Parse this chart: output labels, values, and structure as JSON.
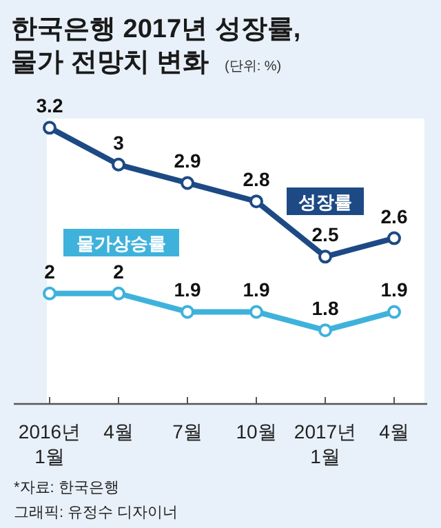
{
  "chart_data": {
    "type": "line",
    "title": "한국은행 2017년 성장률,\n물가 전망치 변화",
    "subtitle": "(단위: %)",
    "categories": [
      "2016년\n1월",
      "4월",
      "7월",
      "10월",
      "2017년\n1월",
      "4월"
    ],
    "series": [
      {
        "name": "성장률",
        "color": "#1d4a85",
        "values": [
          3.2,
          3,
          2.9,
          2.8,
          2.5,
          2.6
        ]
      },
      {
        "name": "물가상승률",
        "color": "#3fb2dc",
        "axis": "y2",
        "values": [
          2,
          2,
          1.9,
          1.9,
          1.8,
          1.9
        ]
      }
    ],
    "ylim": [
      1.7,
      3.25
    ],
    "y2lim": [
      1.4,
      2.95
    ],
    "data_labels": true,
    "marker": "circle",
    "line_style": "solid",
    "grid": false,
    "legend": false,
    "annotations": [
      "*자료: 한국은행",
      "그래픽: 유정수 디자이너"
    ]
  }
}
